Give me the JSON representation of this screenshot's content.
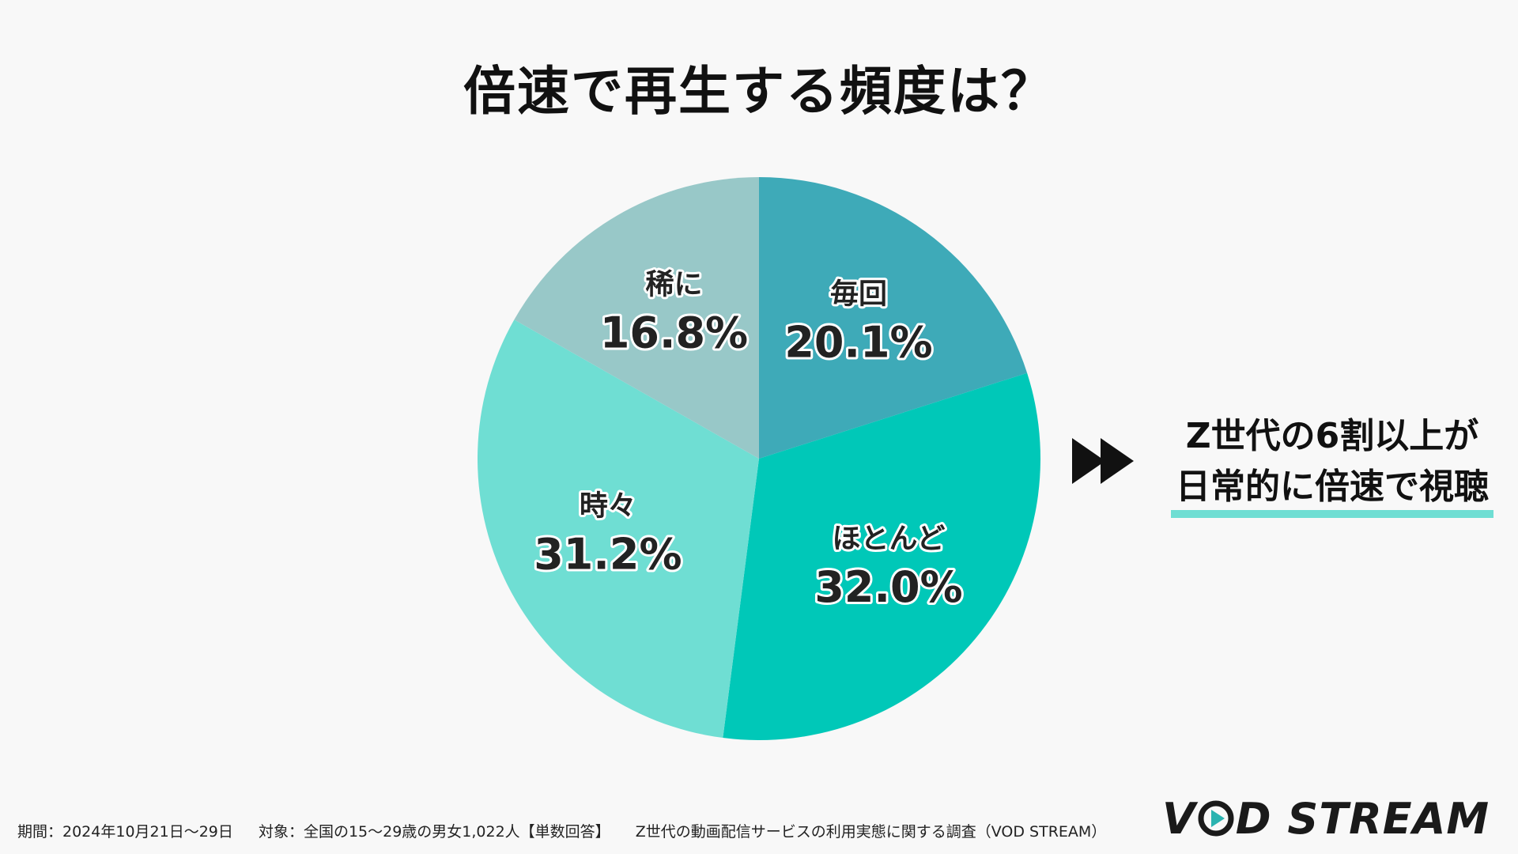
{
  "chart_data": {
    "type": "pie",
    "title": "倍速で再生する頻度は？",
    "slices": [
      {
        "label": "毎回",
        "value": 20.1,
        "value_label": "20.1%",
        "color": "#3eaab8"
      },
      {
        "label": "ほとんど",
        "value": 32.0,
        "value_label": "32.0%",
        "color": "#00c8b8"
      },
      {
        "label": "時々",
        "value": 31.2,
        "value_label": "31.2%",
        "color": "#6fded3"
      },
      {
        "label": "稀に",
        "value": 16.8,
        "value_label": "16.8%",
        "color": "#98c8c8"
      }
    ],
    "start_angle": "12 o'clock",
    "direction": "clockwise"
  },
  "callout": {
    "icon": "fast-forward-icon",
    "line1": "Z世代の6割以上が",
    "line2": "日常的に倍速で視聴",
    "highlight_color": "#6fded3"
  },
  "footer": {
    "period": "期間：2024年10月21日〜29日",
    "target": "対象：全国の15〜29歳の男女1,022人【単数回答】",
    "source": "Z世代の動画配信サービスの利用実態に関する調査（VOD STREAM）"
  },
  "logo": {
    "text_left": "V",
    "text_right": "D STREAM",
    "icon": "play-circle-icon",
    "accent_color": "#2bb3b0"
  }
}
